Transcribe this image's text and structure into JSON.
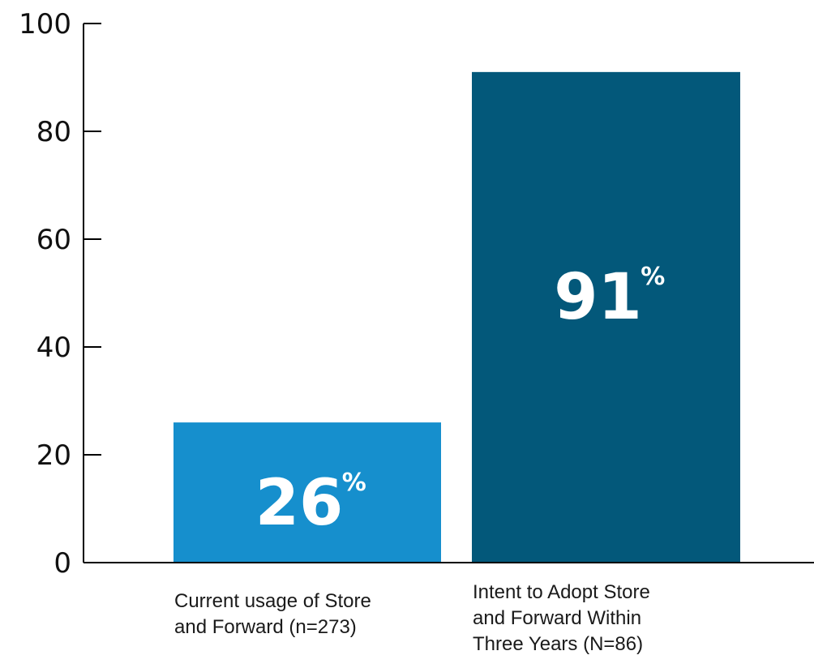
{
  "chart_data": {
    "type": "bar",
    "categories": [
      [
        "Current usage of Store",
        "and Forward (n=273)"
      ],
      [
        "Intent to Adopt Store",
        "and Forward Within",
        "Three Years (N=86)"
      ]
    ],
    "values": [
      26,
      91
    ],
    "value_labels": [
      "26",
      "91"
    ],
    "value_unit": "%",
    "title": "",
    "xlabel": "",
    "ylabel": "",
    "ylim": [
      0,
      100
    ],
    "yticks": [
      "0",
      "20",
      "40",
      "60",
      "80",
      "100"
    ],
    "grid": false,
    "legend": "none",
    "colors": {
      "bar_1": "#168fcd",
      "bar_2": "#03587a",
      "axis": "#000000"
    }
  }
}
